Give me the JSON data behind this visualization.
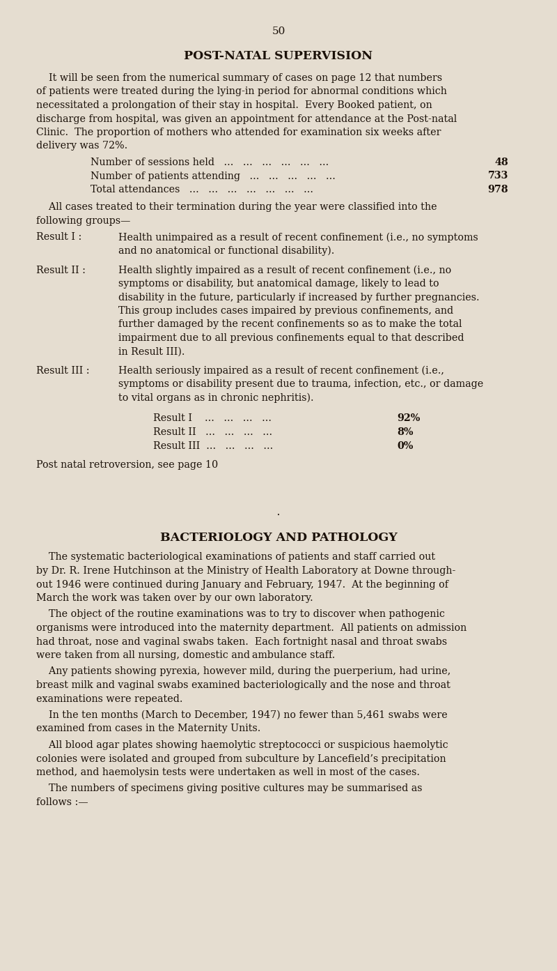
{
  "page_number": "50",
  "bg": "#e5ddd0",
  "tc": "#1a1008",
  "page_width": 8.0,
  "page_height": 13.93,
  "dpi": 100,
  "section1_title": "POST-NATAL SUPERVISION",
  "para1_lines": [
    "    It will be seen from the numerical summary of cases on page 12 that numbers",
    "of patients were treated during the lying-in period for abnormal conditions which",
    "necessitated a prolongation of their stay in hospital.  Every Booked patient, on",
    "discharge from hospital, was given an appointment for attendance at the Post-natal",
    "Clinic.  The proportion of mothers who attended for examination six weeks after",
    "delivery was 72%."
  ],
  "stats": [
    {
      "label": "Number of sessions held   ...   ...   ...   ...   ...   ...",
      "value": "48"
    },
    {
      "label": "Number of patients attending   ...   ...   ...   ...   ...",
      "value": "733"
    },
    {
      "label": "Total attendances   ...   ...   ...   ...   ...   ...   ...",
      "value": "978"
    }
  ],
  "para2_lines": [
    "    All cases treated to their termination during the year were classified into the",
    "following groups—"
  ],
  "result_I_label": "Result I :",
  "result_I_lines": [
    "Health unimpaired as a result of recent confinement (i.e., no symptoms",
    "and no anatomical or functional disability)."
  ],
  "result_II_label": "Result II :",
  "result_II_lines": [
    "Health slightly impaired as a result of recent confinement (i.e., no",
    "symptoms or disability, but anatomical damage, likely to lead to",
    "disability in the future, particularly if increased by further pregnancies.",
    "This group includes cases impaired by previous confinements, and",
    "further damaged by the recent confinements so as to make the total",
    "impairment due to all previous confinements equal to that described",
    "in Result III)."
  ],
  "result_III_label": "Result III :",
  "result_III_lines": [
    "Health seriously impaired as a result of recent confinement (i.e.,",
    "symptoms or disability present due to trauma, infection, etc., or damage",
    "to vital organs as in chronic nephritis)."
  ],
  "result_summary": [
    {
      "label": "Result I    ...   ...   ...   ...",
      "value": "92%"
    },
    {
      "label": "Result II   ...   ...   ...   ...",
      "value": "8%"
    },
    {
      "label": "Result III  ...   ...   ...   ...",
      "value": "0%"
    }
  ],
  "post_note": "Post natal retroversion, see page 10",
  "section2_title": "BACTERIOLOGY AND PATHOLOGY",
  "section2_paras": [
    [
      "    The systematic bacteriological examinations of patients and staff carried out",
      "by Dr. R. Irene Hutchinson at the Ministry of Health Laboratory at Downe through-",
      "out 1946 were continued during January and February, 1947.  At the beginning of",
      "March the work was taken over by our own laboratory."
    ],
    [
      "    The object of the routine examinations was to try to discover when pathogenic",
      "organisms were introduced into the maternity department.  All patients on admission",
      "had throat, nose and vaginal swabs taken.  Each fortnight nasal and throat swabs",
      "were taken from all nursing, domestic and ambulance staff."
    ],
    [
      "    Any patients showing pyrexia, however mild, during the puerperium, had urine,",
      "breast milk and vaginal swabs examined bacteriologically and the nose and throat",
      "examinations were repeated."
    ],
    [
      "    In the ten months (March to December, 1947) no fewer than 5,461 swabs were",
      "examined from cases in the Maternity Units."
    ],
    [
      "    All blood agar plates showing haemolytic streptococci or suspicious haemolytic",
      "colonies were isolated and grouped from subculture by Lancefield’s precipitation",
      "method, and haemolysin tests were undertaken as well in most of the cases."
    ],
    [
      "    The numbers of specimens giving positive cultures may be summarised as",
      "follows :—"
    ]
  ]
}
